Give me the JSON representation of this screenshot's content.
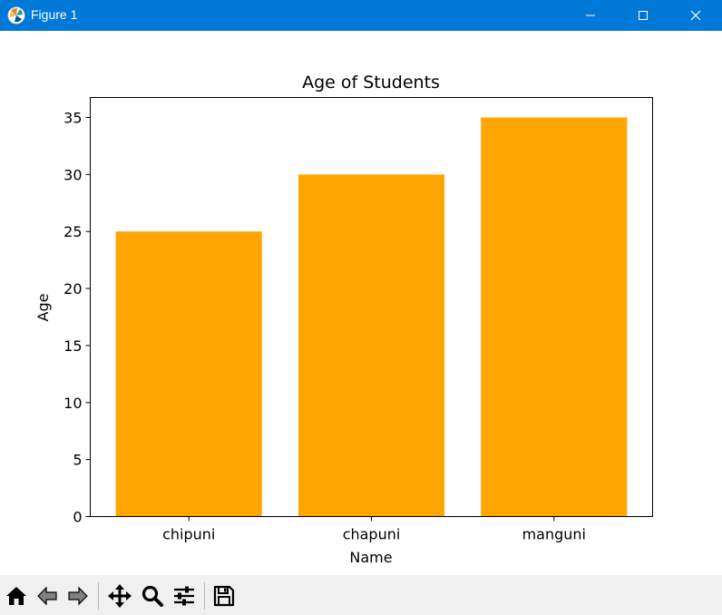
{
  "window": {
    "title": "Figure 1"
  },
  "colors": {
    "bar": "#ffa500",
    "titlebar": "#0078d7",
    "axis": "#000000"
  },
  "chart_data": {
    "type": "bar",
    "title": "Age of Students",
    "xlabel": "Name",
    "ylabel": "Age",
    "categories": [
      "chipuni",
      "chapuni",
      "manguni"
    ],
    "values": [
      25,
      30,
      35
    ],
    "ylim": [
      0,
      36.75
    ],
    "yticks": [
      0,
      5,
      10,
      15,
      20,
      25,
      30,
      35
    ],
    "grid": false
  },
  "toolbar": {
    "icons": [
      "home-icon",
      "back-icon",
      "forward-icon",
      "pan-icon",
      "zoom-icon",
      "configure-icon",
      "save-icon"
    ]
  }
}
